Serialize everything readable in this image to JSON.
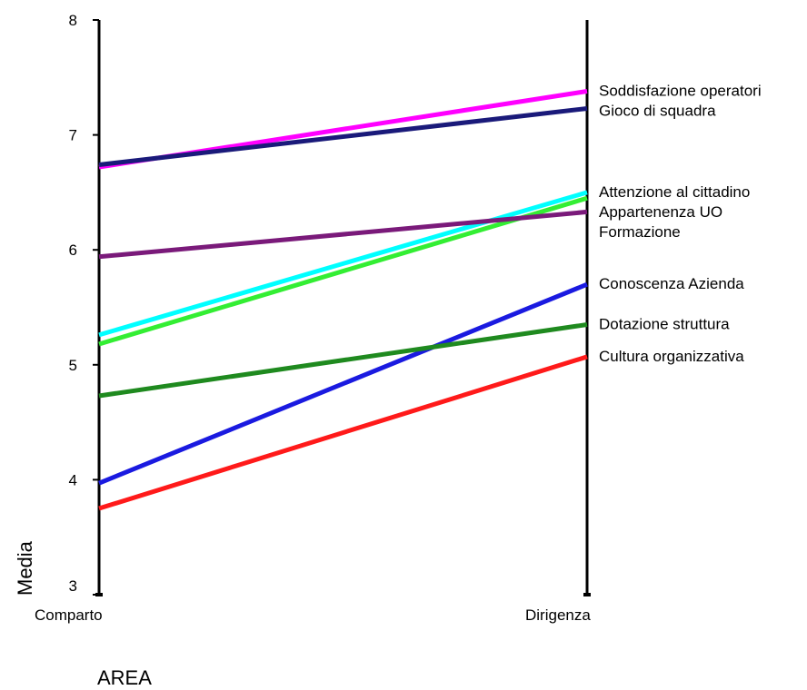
{
  "chart_data": {
    "type": "line",
    "categories": [
      "Comparto",
      "Dirigenza"
    ],
    "xlabel": "AREA",
    "ylabel": "Media",
    "ylim": [
      3,
      8
    ],
    "yticks": [
      3,
      4,
      5,
      6,
      7,
      8
    ],
    "grid": false,
    "legend": "right end labels",
    "series": [
      {
        "name": "Soddisfazione operatori",
        "color": "#ff00ff",
        "values": [
          6.72,
          7.38
        ]
      },
      {
        "name": "Gioco di squadra",
        "color": "#1a1a7a",
        "values": [
          6.74,
          7.23
        ]
      },
      {
        "name": "Attenzione al cittadino",
        "color": "#00ffff",
        "values": [
          5.26,
          6.5
        ]
      },
      {
        "name": "Appartenenza UO",
        "color": "#33ee33",
        "values": [
          5.18,
          6.45
        ]
      },
      {
        "name": "Formazione",
        "color": "#7a1a7a",
        "values": [
          5.94,
          6.33
        ]
      },
      {
        "name": "Conoscenza Azienda",
        "color": "#1a1ae0",
        "values": [
          3.97,
          5.7
        ]
      },
      {
        "name": "Dotazione struttura",
        "color": "#1f8a1f",
        "values": [
          4.73,
          5.35
        ]
      },
      {
        "name": "Cultura organizzativa",
        "color": "#ff1a1a",
        "values": [
          3.75,
          5.07
        ]
      }
    ]
  }
}
